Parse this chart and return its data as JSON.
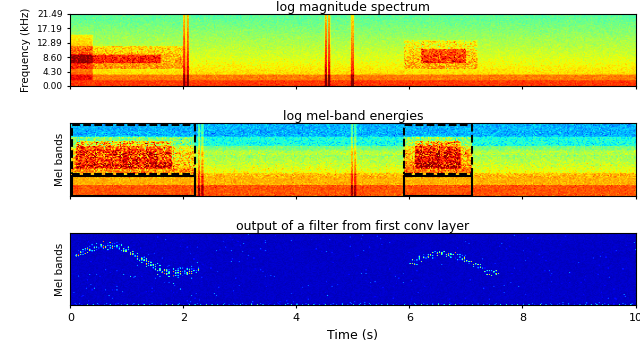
{
  "title1": "log magnitude spectrum",
  "title2": "log mel-band energies",
  "title3": "output of a filter from first conv layer",
  "ylabel1": "Frequency (kHz)",
  "ylabel2": "Mel bands",
  "ylabel3": "Mel bands",
  "xlabel": "Time (s)",
  "yticks1": [
    0.0,
    4.3,
    8.6,
    12.89,
    17.19,
    21.49
  ],
  "ytick_labels1": [
    "0.00",
    "4.30",
    "8.60",
    "12.89",
    "17.19",
    "21.49"
  ],
  "xticks": [
    0,
    2,
    4,
    6,
    8,
    10
  ],
  "time_max": 10.0,
  "seed": 42
}
